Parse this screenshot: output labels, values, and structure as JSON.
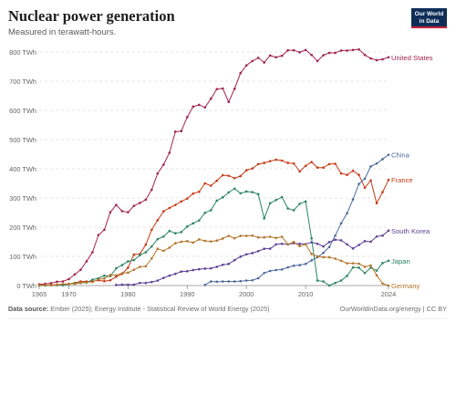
{
  "header": {
    "title": "Nuclear power generation",
    "subtitle": "Measured in terawatt-hours."
  },
  "logo": {
    "line1": "Our World",
    "line2": "in Data"
  },
  "footer": {
    "source_label": "Data source:",
    "source_text": "Ember (2025); Energy Institute - Statistical Review of World Energy (2025)",
    "right_text": "OurWorldinData.org/energy | CC BY"
  },
  "chart_data": {
    "type": "line",
    "title": "Nuclear power generation",
    "subtitle": "Measured in terawatt-hours.",
    "xlabel": "",
    "ylabel": "",
    "xlim": [
      1965,
      2024
    ],
    "ylim": [
      0,
      800
    ],
    "x_ticks": [
      1965,
      1970,
      1980,
      1990,
      2000,
      2010,
      2024
    ],
    "y_ticks": [
      0,
      100,
      200,
      300,
      400,
      500,
      600,
      700,
      800
    ],
    "y_tick_labels": [
      "0 TWh",
      "100 TWh",
      "200 TWh",
      "300 TWh",
      "400 TWh",
      "500 TWh",
      "600 TWh",
      "700 TWh",
      "800 TWh"
    ],
    "grid": "horizontal dashed",
    "legend": "inline labels at right end of lines",
    "series": [
      {
        "name": "United States",
        "color": "#a2234c",
        "x": [
          1965,
          1966,
          1967,
          1968,
          1969,
          1970,
          1971,
          1972,
          1973,
          1974,
          1975,
          1976,
          1977,
          1978,
          1979,
          1980,
          1981,
          1982,
          1983,
          1984,
          1985,
          1986,
          1987,
          1988,
          1989,
          1990,
          1991,
          1992,
          1993,
          1994,
          1995,
          1996,
          1997,
          1998,
          1999,
          2000,
          2001,
          2002,
          2003,
          2004,
          2005,
          2006,
          2007,
          2008,
          2009,
          2010,
          2011,
          2012,
          2013,
          2014,
          2015,
          2016,
          2017,
          2018,
          2019,
          2020,
          2021,
          2022,
          2023,
          2024
        ],
        "values": [
          4,
          6,
          8,
          13,
          14,
          22,
          38,
          54,
          83,
          114,
          173,
          191,
          251,
          276,
          255,
          251,
          273,
          283,
          294,
          328,
          384,
          414,
          455,
          527,
          529,
          577,
          613,
          619,
          610,
          640,
          673,
          675,
          629,
          674,
          728,
          754,
          769,
          780,
          764,
          788,
          782,
          787,
          806,
          806,
          799,
          807,
          790,
          769,
          789,
          797,
          797,
          805,
          805,
          807,
          809,
          790,
          778,
          772,
          775,
          782
        ]
      },
      {
        "name": "France",
        "color": "#c73a14",
        "x": [
          1965,
          1966,
          1967,
          1968,
          1969,
          1970,
          1971,
          1972,
          1973,
          1974,
          1975,
          1976,
          1977,
          1978,
          1979,
          1980,
          1981,
          1982,
          1983,
          1984,
          1985,
          1986,
          1987,
          1988,
          1989,
          1990,
          1991,
          1992,
          1993,
          1994,
          1995,
          1996,
          1997,
          1998,
          1999,
          2000,
          2001,
          2002,
          2003,
          2004,
          2005,
          2006,
          2007,
          2008,
          2009,
          2010,
          2011,
          2012,
          2013,
          2014,
          2015,
          2016,
          2017,
          2018,
          2019,
          2020,
          2021,
          2022,
          2023,
          2024
        ],
        "values": [
          1,
          1,
          2,
          3,
          4,
          5,
          9,
          14,
          14,
          14,
          18,
          15,
          18,
          30,
          40,
          61,
          106,
          108,
          140,
          191,
          224,
          254,
          266,
          276,
          288,
          298,
          315,
          321,
          350,
          342,
          359,
          378,
          376,
          368,
          375,
          395,
          401,
          416,
          420,
          426,
          431,
          428,
          420,
          418,
          391,
          410,
          423,
          404,
          404,
          416,
          417,
          384,
          379,
          393,
          379,
          335,
          360,
          282,
          320,
          362
        ]
      },
      {
        "name": "China",
        "color": "#4d6a9c",
        "x": [
          1993,
          1994,
          1995,
          1996,
          1997,
          1998,
          1999,
          2000,
          2001,
          2002,
          2003,
          2004,
          2005,
          2006,
          2007,
          2008,
          2009,
          2010,
          2011,
          2012,
          2013,
          2014,
          2015,
          2016,
          2017,
          2018,
          2019,
          2020,
          2021,
          2022,
          2023,
          2024
        ],
        "values": [
          2,
          14,
          13,
          14,
          14,
          14,
          15,
          17,
          18,
          25,
          43,
          50,
          53,
          55,
          62,
          68,
          70,
          74,
          86,
          97,
          112,
          132,
          171,
          213,
          248,
          295,
          348,
          366,
          408,
          418,
          433,
          448
        ]
      },
      {
        "name": "South Korea",
        "color": "#5b3f96",
        "x": [
          1978,
          1979,
          1980,
          1981,
          1982,
          1983,
          1984,
          1985,
          1986,
          1987,
          1988,
          1989,
          1990,
          1991,
          1992,
          1993,
          1994,
          1995,
          1996,
          1997,
          1998,
          1999,
          2000,
          2001,
          2002,
          2003,
          2004,
          2005,
          2006,
          2007,
          2008,
          2009,
          2010,
          2011,
          2012,
          2013,
          2014,
          2015,
          2016,
          2017,
          2018,
          2019,
          2020,
          2021,
          2022,
          2023,
          2024
        ],
        "values": [
          2,
          3,
          3,
          3,
          9,
          9,
          12,
          17,
          26,
          34,
          40,
          48,
          49,
          53,
          56,
          58,
          59,
          64,
          71,
          74,
          87,
          99,
          107,
          111,
          118,
          126,
          126,
          141,
          143,
          141,
          145,
          143,
          142,
          148,
          143,
          134,
          149,
          157,
          155,
          141,
          127,
          139,
          152,
          150,
          168,
          171,
          188
        ]
      },
      {
        "name": "Japan",
        "color": "#2c8465",
        "x": [
          1965,
          1966,
          1967,
          1968,
          1969,
          1970,
          1971,
          1972,
          1973,
          1974,
          1975,
          1976,
          1977,
          1978,
          1979,
          1980,
          1981,
          1982,
          1983,
          1984,
          1985,
          1986,
          1987,
          1988,
          1989,
          1990,
          1991,
          1992,
          1993,
          1994,
          1995,
          1996,
          1997,
          1998,
          1999,
          2000,
          2001,
          2002,
          2003,
          2004,
          2005,
          2006,
          2007,
          2008,
          2009,
          2010,
          2011,
          2012,
          2013,
          2014,
          2015,
          2016,
          2017,
          2018,
          2019,
          2020,
          2021,
          2022,
          2023,
          2024
        ],
        "values": [
          0,
          0,
          1,
          1,
          1,
          5,
          8,
          9,
          10,
          20,
          25,
          34,
          32,
          59,
          70,
          83,
          87,
          104,
          114,
          134,
          159,
          168,
          187,
          179,
          183,
          202,
          213,
          223,
          249,
          258,
          291,
          302,
          319,
          332,
          316,
          322,
          320,
          313,
          230,
          282,
          293,
          303,
          264,
          258,
          280,
          288,
          162,
          17,
          14,
          0,
          9,
          17,
          33,
          62,
          61,
          43,
          61,
          51,
          77,
          85
        ]
      },
      {
        "name": "Germany",
        "color": "#b5742a",
        "x": [
          1965,
          1966,
          1967,
          1968,
          1969,
          1970,
          1971,
          1972,
          1973,
          1974,
          1975,
          1976,
          1977,
          1978,
          1979,
          1980,
          1981,
          1982,
          1983,
          1984,
          1985,
          1986,
          1987,
          1988,
          1989,
          1990,
          1991,
          1992,
          1993,
          1994,
          1995,
          1996,
          1997,
          1998,
          1999,
          2000,
          2001,
          2002,
          2003,
          2004,
          2005,
          2006,
          2007,
          2008,
          2009,
          2010,
          2011,
          2012,
          2013,
          2014,
          2015,
          2016,
          2017,
          2018,
          2019,
          2020,
          2021,
          2022,
          2023,
          2024
        ],
        "values": [
          1,
          1,
          1,
          2,
          5,
          6,
          6,
          9,
          12,
          12,
          21,
          24,
          36,
          35,
          42,
          44,
          54,
          64,
          66,
          93,
          126,
          119,
          130,
          145,
          150,
          152,
          147,
          158,
          153,
          151,
          154,
          161,
          170,
          162,
          170,
          170,
          171,
          165,
          165,
          167,
          163,
          167,
          141,
          149,
          135,
          141,
          108,
          100,
          97,
          97,
          92,
          85,
          76,
          76,
          75,
          64,
          69,
          35,
          7,
          0
        ]
      }
    ]
  }
}
